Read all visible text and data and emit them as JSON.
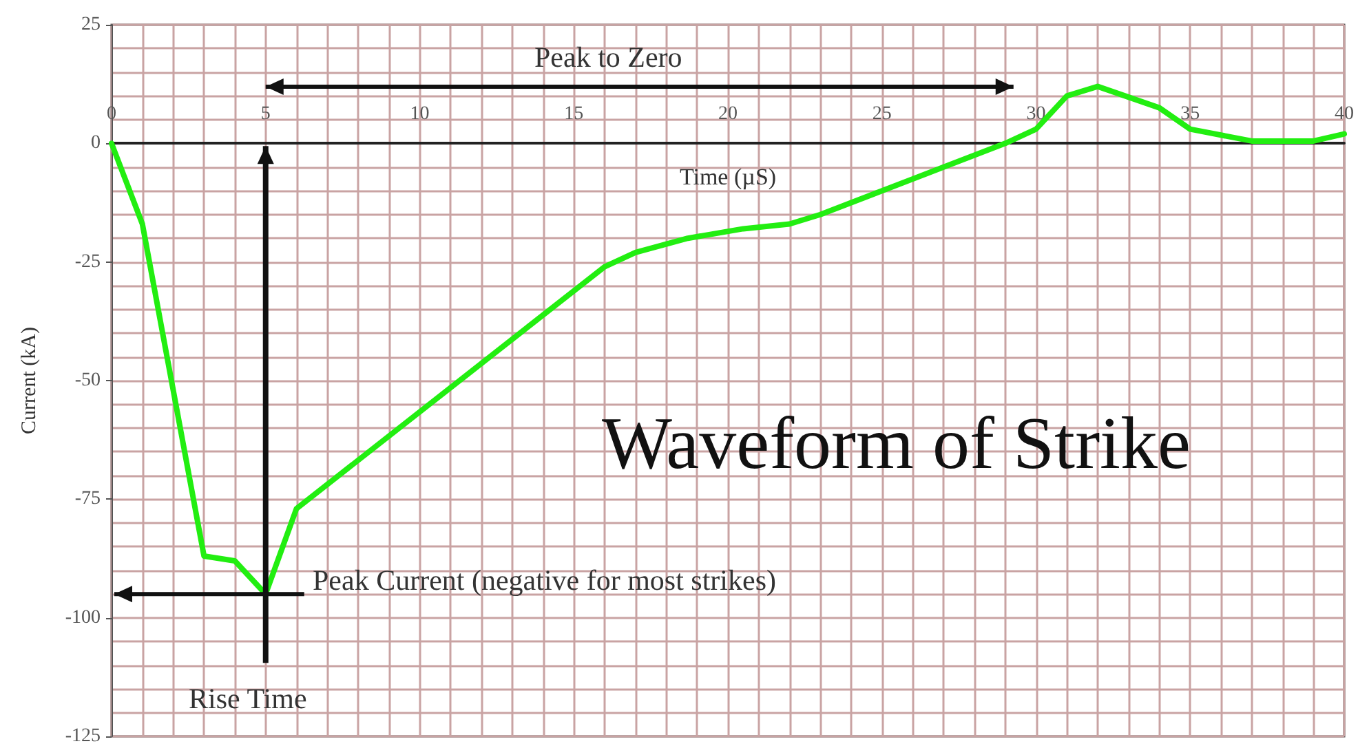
{
  "chart_data": {
    "type": "line",
    "title": "Waveform of Strike",
    "xlabel": "Time (µS)",
    "ylabel": "Current (kA)",
    "x": [
      0,
      1,
      3,
      4,
      5,
      6,
      16,
      17,
      18.7,
      20.5,
      22,
      23,
      25,
      27,
      29,
      30,
      31,
      32,
      34,
      35,
      37,
      39,
      40
    ],
    "series": [
      {
        "color": "#22ee11",
        "values": [
          0,
          -17,
          -87,
          -88,
          -95,
          -77,
          -26,
          -23,
          -20,
          -18,
          -17,
          -15,
          -10,
          -5,
          0,
          3,
          10,
          12,
          7.5,
          3,
          0.5,
          0.5,
          2
        ]
      }
    ],
    "xlim": [
      0,
      40
    ],
    "xticks": [
      0,
      5,
      10,
      15,
      20,
      25,
      30,
      35,
      40
    ],
    "ylim": [
      -125,
      25
    ],
    "yticks": [
      -125,
      -100,
      -75,
      -50,
      -25,
      0,
      25
    ],
    "grid": true,
    "marker": "none",
    "line_style": "solid",
    "annotations": [
      "Peak to Zero",
      "Peak Current (negative for most strikes)",
      "Rise Time"
    ]
  }
}
